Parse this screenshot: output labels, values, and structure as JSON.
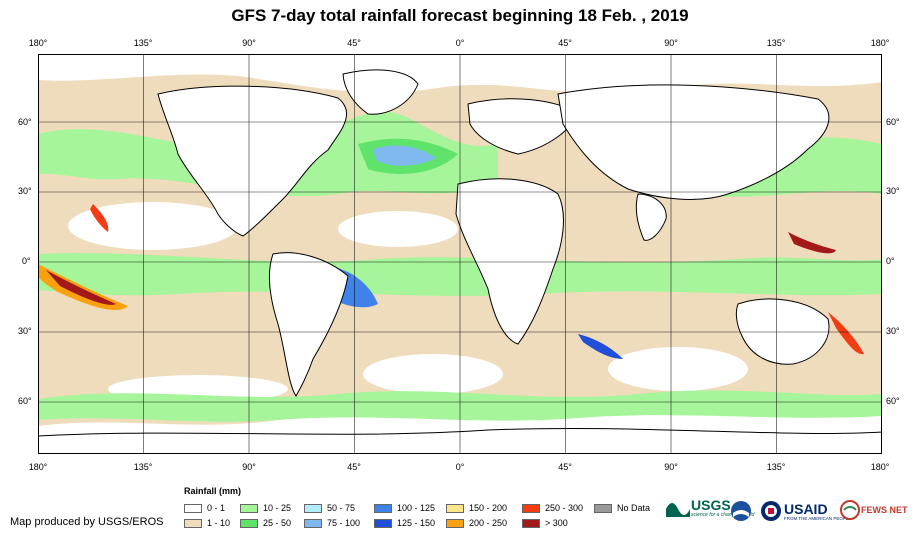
{
  "title": "GFS 7-day total rainfall forecast beginning 18 Feb. , 2019",
  "lon_labels": [
    "180°",
    "135°",
    "90°",
    "45°",
    "0°",
    "45°",
    "90°",
    "135°",
    "180°"
  ],
  "lat_labels": [
    "60°",
    "30°",
    "0°",
    "30°",
    "60°"
  ],
  "legend": {
    "title": "Rainfall (mm)",
    "items": [
      {
        "label": "0 - 1",
        "color": "#ffffff"
      },
      {
        "label": "1 - 10",
        "color": "#efdcbc"
      },
      {
        "label": "10 - 25",
        "color": "#a6f59a"
      },
      {
        "label": "25 - 50",
        "color": "#5fe36a"
      },
      {
        "label": "50 - 75",
        "color": "#b4ecfb"
      },
      {
        "label": "75 - 100",
        "color": "#7fb9f0"
      },
      {
        "label": "100 - 125",
        "color": "#3f83e8"
      },
      {
        "label": "125 - 150",
        "color": "#1f4fd8"
      },
      {
        "label": "150 - 200",
        "color": "#fde58a"
      },
      {
        "label": "200 - 250",
        "color": "#f9a10e"
      },
      {
        "label": "250 - 300",
        "color": "#f23d14"
      },
      {
        "label": "> 300",
        "color": "#a31818"
      },
      {
        "label": "No Data",
        "color": "#999999"
      }
    ]
  },
  "credit": "Map produced by USGS/EROS",
  "logos": {
    "usgs": "USGS",
    "usgs_tagline": "science for a changing world",
    "usaid": "USAID",
    "usaid_tagline": "FROM THE AMERICAN PEOPLE",
    "fewsnet": "FEWS NET"
  }
}
